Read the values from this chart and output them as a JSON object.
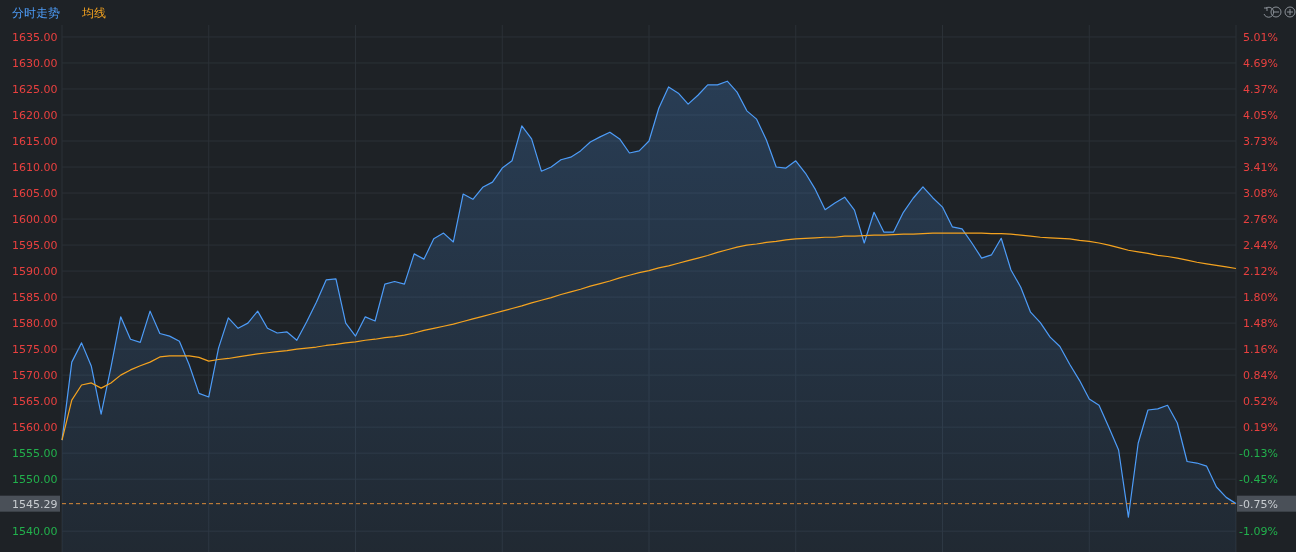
{
  "chart_data": {
    "type": "line",
    "grid": true,
    "categories": [
      null,
      null,
      null,
      null,
      null,
      null,
      null,
      null,
      null,
      null,
      null,
      null,
      null,
      null,
      null,
      null,
      null,
      null,
      null,
      null,
      null,
      null,
      null,
      null,
      null,
      null,
      null,
      null,
      null,
      null,
      null,
      null,
      null,
      null,
      null,
      null,
      null,
      null,
      null,
      null,
      null,
      null,
      null,
      null,
      null,
      null,
      null,
      null,
      null,
      null,
      null,
      null,
      null,
      null,
      null,
      null,
      null,
      null,
      null,
      null,
      null,
      null,
      null,
      null,
      null,
      null,
      null,
      null,
      null,
      null,
      null,
      null,
      null,
      null,
      null,
      null,
      null,
      null,
      null,
      null,
      null,
      null,
      null,
      null,
      null,
      null,
      null,
      null,
      null,
      null,
      null,
      null,
      null,
      null,
      null,
      null,
      null,
      null,
      null,
      null,
      null,
      null,
      null,
      null,
      null,
      null,
      null,
      null,
      null,
      null,
      null,
      null,
      null,
      null,
      null,
      null,
      null,
      null,
      null,
      null,
      null
    ],
    "ylim": [
      1536,
      1637.3
    ],
    "yticks": [
      {
        "value": 1540,
        "label": "1540.00"
      },
      {
        "value": 1550,
        "label": "1550.00"
      },
      {
        "value": 1555,
        "label": "1555.00"
      },
      {
        "value": 1560,
        "label": "1560.00"
      },
      {
        "value": 1565,
        "label": "1565.00"
      },
      {
        "value": 1570,
        "label": "1570.00"
      },
      {
        "value": 1575,
        "label": "1575.00"
      },
      {
        "value": 1580,
        "label": "1580.00"
      },
      {
        "value": 1585,
        "label": "1585.00"
      },
      {
        "value": 1590,
        "label": "1590.00"
      },
      {
        "value": 1595,
        "label": "1595.00"
      },
      {
        "value": 1600,
        "label": "1600.00"
      },
      {
        "value": 1605,
        "label": "1605.00"
      },
      {
        "value": 1610,
        "label": "1610.00"
      },
      {
        "value": 1615,
        "label": "1615.00"
      },
      {
        "value": 1620,
        "label": "1620.00"
      },
      {
        "value": 1625,
        "label": "1625.00"
      },
      {
        "value": 1630,
        "label": "1630.00"
      },
      {
        "value": 1635,
        "label": "1635.00"
      }
    ],
    "y2lim": [
      -1.35,
      5.16
    ],
    "y2ticks": [
      {
        "value": -1.09,
        "label": "-1.09%"
      },
      {
        "value": -0.45,
        "label": "-0.45%"
      },
      {
        "value": -0.13,
        "label": "-0.13%"
      },
      {
        "value": 0.19,
        "label": "0.19%"
      },
      {
        "value": 0.52,
        "label": "0.52%"
      },
      {
        "value": 0.84,
        "label": "0.84%"
      },
      {
        "value": 1.16,
        "label": "1.16%"
      },
      {
        "value": 1.48,
        "label": "1.48%"
      },
      {
        "value": 1.8,
        "label": "1.80%"
      },
      {
        "value": 2.12,
        "label": "2.12%"
      },
      {
        "value": 2.44,
        "label": "2.44%"
      },
      {
        "value": 2.76,
        "label": "2.76%"
      },
      {
        "value": 3.08,
        "label": "3.08%"
      },
      {
        "value": 3.41,
        "label": "3.41%"
      },
      {
        "value": 3.73,
        "label": "3.73%"
      },
      {
        "value": 4.05,
        "label": "4.05%"
      },
      {
        "value": 4.37,
        "label": "4.37%"
      },
      {
        "value": 4.69,
        "label": "4.69%"
      },
      {
        "value": 5.01,
        "label": "5.01%"
      }
    ],
    "ref_lines": [
      {
        "axis": "y",
        "value": 1545.29,
        "label": "1545.29",
        "color": "#d98a3a",
        "line_style": "dashed"
      }
    ],
    "annotations": [
      "-0.75%"
    ],
    "series": [
      {
        "name": "分时走势",
        "type": "area",
        "color": "#4d9cf8",
        "values": [
          1557.5,
          1572.5,
          1576.2,
          1571.7,
          1562.5,
          1571.5,
          1581.2,
          1576.9,
          1576.3,
          1582.3,
          1578.0,
          1577.5,
          1576.5,
          1572.0,
          1566.5,
          1565.8,
          1575.2,
          1581.0,
          1579.0,
          1580.0,
          1582.3,
          1579.0,
          1578.1,
          1578.3,
          1576.7,
          1580.2,
          1584.0,
          1588.3,
          1588.5,
          1580.0,
          1577.5,
          1581.2,
          1580.4,
          1587.5,
          1588.0,
          1587.5,
          1593.3,
          1592.3,
          1596.2,
          1597.3,
          1595.6,
          1604.8,
          1603.8,
          1606.1,
          1607.1,
          1609.8,
          1611.2,
          1617.9,
          1615.4,
          1609.2,
          1610.0,
          1611.4,
          1611.9,
          1613.1,
          1614.8,
          1615.8,
          1616.7,
          1615.4,
          1612.7,
          1613.1,
          1615.0,
          1621.3,
          1625.4,
          1624.2,
          1622.1,
          1623.8,
          1625.8,
          1625.8,
          1626.5,
          1624.4,
          1620.8,
          1619.2,
          1615.2,
          1610.0,
          1609.8,
          1611.2,
          1608.8,
          1605.7,
          1601.8,
          1603.1,
          1604.2,
          1601.7,
          1595.4,
          1601.3,
          1597.5,
          1597.5,
          1601.3,
          1604.0,
          1606.2,
          1604.1,
          1602.3,
          1598.5,
          1598.1,
          1595.4,
          1592.5,
          1593.1,
          1596.3,
          1590.2,
          1586.9,
          1582.1,
          1580.1,
          1577.3,
          1575.5,
          1572.1,
          1569.0,
          1565.4,
          1564.2,
          1560.0,
          1555.6,
          1542.7,
          1556.9,
          1563.3,
          1563.5,
          1564.2,
          1560.8,
          1553.4,
          1553.1,
          1552.5,
          1548.5,
          1546.5,
          1545.3
        ]
      },
      {
        "name": "均线",
        "type": "line",
        "color": "#f5a31f",
        "values": [
          1557.5,
          1565.2,
          1568.1,
          1568.5,
          1567.5,
          1568.5,
          1570.0,
          1571.0,
          1571.8,
          1572.5,
          1573.5,
          1573.7,
          1573.7,
          1573.7,
          1573.4,
          1572.7,
          1573.0,
          1573.2,
          1573.5,
          1573.8,
          1574.1,
          1574.3,
          1574.5,
          1574.7,
          1575.0,
          1575.2,
          1575.4,
          1575.7,
          1575.9,
          1576.2,
          1576.4,
          1576.7,
          1576.9,
          1577.2,
          1577.4,
          1577.7,
          1578.1,
          1578.6,
          1579.0,
          1579.4,
          1579.8,
          1580.3,
          1580.8,
          1581.3,
          1581.8,
          1582.3,
          1582.8,
          1583.3,
          1583.9,
          1584.4,
          1584.9,
          1585.5,
          1586.0,
          1586.5,
          1587.1,
          1587.6,
          1588.1,
          1588.7,
          1589.2,
          1589.7,
          1590.1,
          1590.6,
          1591.0,
          1591.5,
          1592.0,
          1592.5,
          1593.0,
          1593.6,
          1594.1,
          1594.6,
          1595.0,
          1595.2,
          1595.5,
          1595.7,
          1596.0,
          1596.2,
          1596.3,
          1596.4,
          1596.5,
          1596.5,
          1596.7,
          1596.7,
          1596.8,
          1596.9,
          1596.9,
          1597.0,
          1597.1,
          1597.1,
          1597.2,
          1597.3,
          1597.3,
          1597.3,
          1597.3,
          1597.3,
          1597.3,
          1597.2,
          1597.2,
          1597.1,
          1596.9,
          1596.7,
          1596.5,
          1596.4,
          1596.3,
          1596.2,
          1595.9,
          1595.7,
          1595.4,
          1595.0,
          1594.5,
          1594.0,
          1593.7,
          1593.4,
          1593.0,
          1592.8,
          1592.5,
          1592.1,
          1591.7,
          1591.4,
          1591.1,
          1590.8,
          1590.5
        ]
      }
    ]
  }
}
